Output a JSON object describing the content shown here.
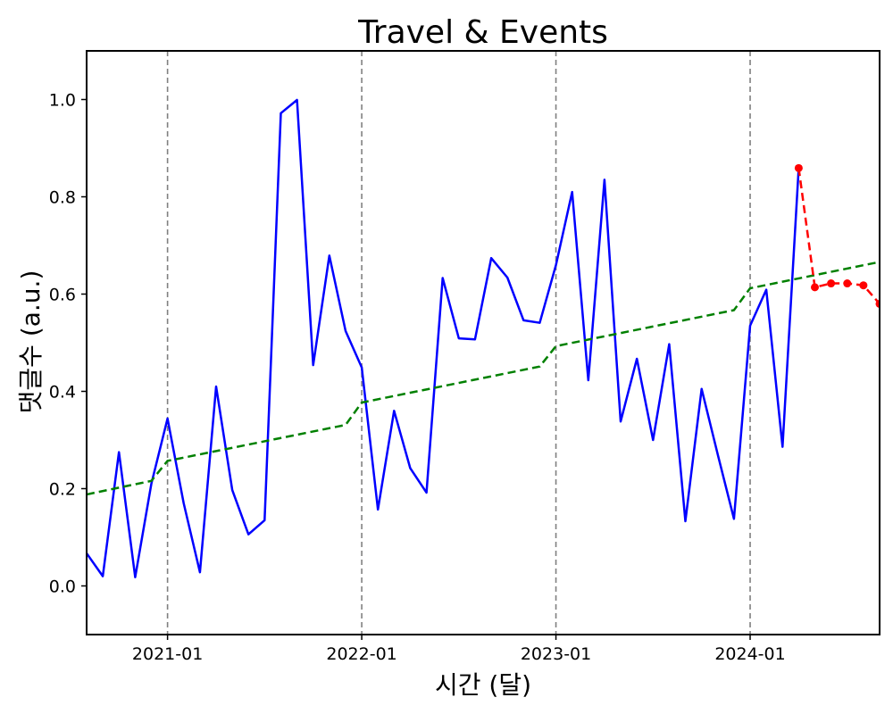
{
  "chart_data": {
    "type": "line",
    "title": "Travel & Events",
    "xlabel": "시간 (달)",
    "ylabel": "댓글수 (a.u.)",
    "xlim": [
      "2020-08-01",
      "2024-09-01"
    ],
    "ylim": [
      -0.1,
      1.1
    ],
    "yticks": [
      0.0,
      0.2,
      0.4,
      0.6,
      0.8,
      1.0
    ],
    "xticks": [
      "2021-01",
      "2022-01",
      "2023-01",
      "2024-01"
    ],
    "vlines": [
      "2021-01",
      "2022-01",
      "2023-01",
      "2024-01"
    ],
    "grid": false,
    "legend": "none",
    "series": [
      {
        "role": "observed",
        "color": "#0000ff",
        "style": "solid",
        "markers": false,
        "x": [
          "2020-08",
          "2020-09",
          "2020-10",
          "2020-11",
          "2020-12",
          "2021-01",
          "2021-02",
          "2021-03",
          "2021-04",
          "2021-05",
          "2021-06",
          "2021-07",
          "2021-08",
          "2021-09",
          "2021-10",
          "2021-11",
          "2021-12",
          "2022-01",
          "2022-02",
          "2022-03",
          "2022-04",
          "2022-05",
          "2022-06",
          "2022-07",
          "2022-08",
          "2022-09",
          "2022-10",
          "2022-11",
          "2022-12",
          "2023-01",
          "2023-02",
          "2023-03",
          "2023-04",
          "2023-05",
          "2023-06",
          "2023-07",
          "2023-08",
          "2023-09",
          "2023-10",
          "2023-11",
          "2023-12",
          "2024-01",
          "2024-02",
          "2024-03",
          "2024-04"
        ],
        "y": [
          0.067,
          0.02,
          0.275,
          0.018,
          0.21,
          0.344,
          0.17,
          0.028,
          0.41,
          0.197,
          0.106,
          0.135,
          0.972,
          0.999,
          0.454,
          0.679,
          0.524,
          0.449,
          0.157,
          0.36,
          0.242,
          0.192,
          0.633,
          0.509,
          0.507,
          0.674,
          0.634,
          0.546,
          0.541,
          0.66,
          0.81,
          0.423,
          0.835,
          0.338,
          0.467,
          0.3,
          0.497,
          0.133,
          0.405,
          0.27,
          0.138,
          0.535,
          0.609,
          0.286,
          0.859
        ]
      },
      {
        "role": "trend",
        "color": "#008000",
        "style": "dashed",
        "markers": false,
        "x": [
          "2020-08",
          "2020-12",
          "2021-01",
          "2021-12",
          "2022-01",
          "2022-12",
          "2023-01",
          "2023-12",
          "2024-01",
          "2024-09"
        ],
        "y": [
          0.188,
          0.216,
          0.257,
          0.331,
          0.377,
          0.451,
          0.493,
          0.567,
          0.612,
          0.666
        ]
      },
      {
        "role": "forecast",
        "color": "#ff0000",
        "style": "dashed",
        "markers": true,
        "x": [
          "2024-04",
          "2024-05",
          "2024-06",
          "2024-07",
          "2024-08",
          "2024-09"
        ],
        "y": [
          0.859,
          0.614,
          0.622,
          0.622,
          0.618,
          0.58
        ]
      }
    ]
  }
}
